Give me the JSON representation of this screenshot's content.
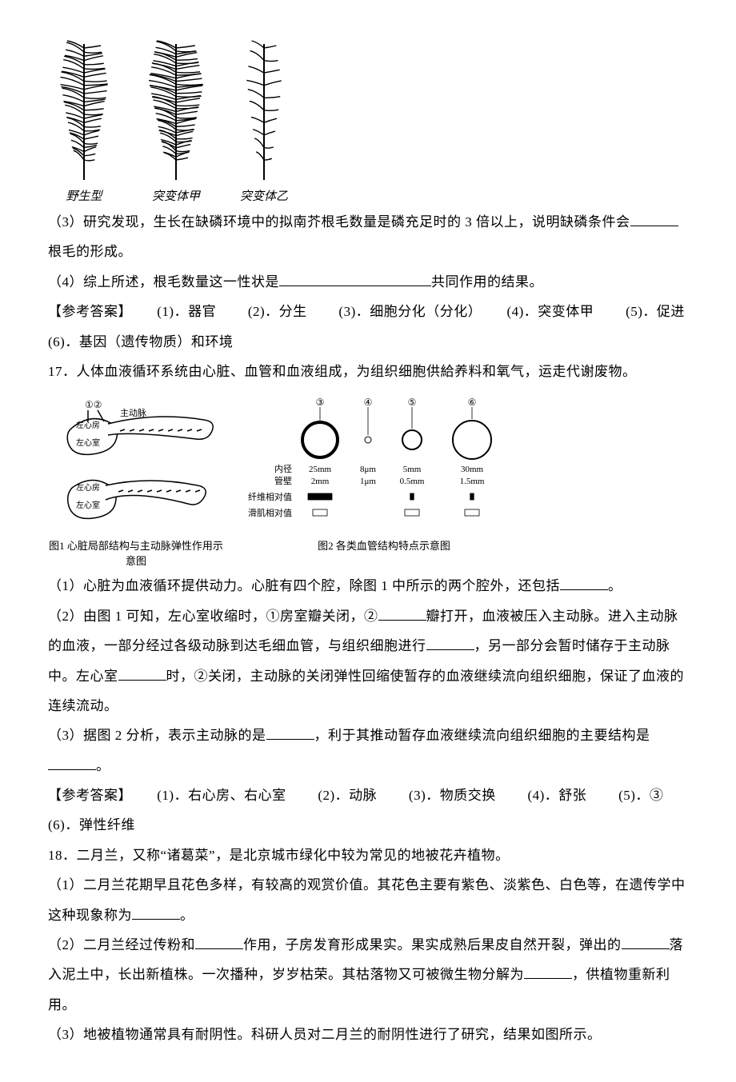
{
  "colors": {
    "text": "#000000",
    "background": "#ffffff",
    "line": "#000000"
  },
  "root_diagram": {
    "items": [
      {
        "label": "野生型",
        "density": 28,
        "length": 170,
        "hair_len": 30
      },
      {
        "label": "突变体甲",
        "density": 38,
        "length": 170,
        "hair_len": 34
      },
      {
        "label": "突变体乙",
        "density": 10,
        "length": 170,
        "hair_len": 22
      }
    ],
    "stroke": "#000000",
    "stroke_width": 1.4,
    "caption_fontsize": 15
  },
  "q16": {
    "p3": "（3）研究发现，生长在缺磷环境中的拟南芥根毛数量是磷充足时的 3 倍以上，说明缺磷条件会",
    "p3b": "根毛的形成。",
    "p4a": "（4）综上所述，根毛数量这一性状是",
    "p4b": "共同作用的结果。",
    "answer_label": "【参考答案】",
    "answers": [
      "(1)．器官",
      "(2)．分生",
      "(3)．细胞分化（分化）",
      "(4)．突变体甲",
      "(5)．促进",
      "(6)．基因（遗传物质）和环境"
    ]
  },
  "q17": {
    "title": "17．人体血液循环系统由心脏、血管和血液组成，为组织细胞供給养料和氧气，运走代谢废物。",
    "heart_fig": {
      "caption": "图1 心脏局部结构与主动脉弹性作用示意图",
      "labels": {
        "la": "左心房",
        "lv": "左心室",
        "aorta": "主动脉",
        "n1": "①",
        "n2": "②"
      },
      "stroke": "#000000"
    },
    "vessel_fig": {
      "caption": "图2 各类血管结构特点示意图",
      "vessels": [
        {
          "id": "③",
          "inner_d": "25mm",
          "wall": "2mm",
          "r": 22,
          "sw": 4
        },
        {
          "id": "④",
          "inner_d": "8μm",
          "wall": "1μm",
          "r": 4,
          "sw": 1
        },
        {
          "id": "⑤",
          "inner_d": "5mm",
          "wall": "0.5mm",
          "r": 12,
          "sw": 2
        },
        {
          "id": "⑥",
          "inner_d": "30mm",
          "wall": "1.5mm",
          "r": 24,
          "sw": 2
        }
      ],
      "row_labels": [
        "内径",
        "管壁",
        "弹性纤维相对值",
        "平滑肌相对值"
      ],
      "bars_elastic": [
        1.0,
        0.0,
        0.15,
        0.15
      ],
      "bars_smooth": [
        0.6,
        0.0,
        0.6,
        0.6
      ],
      "stroke": "#000000"
    },
    "p1": "（1）心脏为血液循环提供动力。心脏有四个腔，除图 1 中所示的两个腔外，还包括",
    "p1b": "。",
    "p2a": "（2）由图 1 可知，左心室收缩时，①房室瓣关闭，②",
    "p2b": "瓣打开，血液被压入主动脉。进入主动脉的血液，一部分经过各级动脉到达毛细血管，与组织细胞进行",
    "p2c": "，另一部分会暂时储存于主动脉中。左心室",
    "p2d": "时，②关闭，主动脉的关闭弹性回缩使暂存的血液继续流向组织细胞，保证了血液的连续流动。",
    "p3a": "（3）据图 2 分析，表示主动脉的是",
    "p3b": "，利于其推动暂存血液继续流向组织细胞的主要结构是",
    "p3c": "。",
    "answer_label": "【参考答案】",
    "answers": [
      "(1)．右心房、右心室",
      "(2)．动脉",
      "(3)．物质交换",
      "(4)．舒张",
      "(5)．③",
      "(6)．弹性纤维"
    ]
  },
  "q18": {
    "title": "18．二月兰，又称“诸葛菜”，是北京城市绿化中较为常见的地被花卉植物。",
    "p1a": "（1）二月兰花期早且花色多样，有较高的观赏价值。其花色主要有紫色、淡紫色、白色等，在遗传学中这种现象称为",
    "p1b": "。",
    "p2a": "（2）二月兰经过传粉和",
    "p2b": "作用，子房发育形成果实。果实成熟后果皮自然开裂，弹出的",
    "p2c": "落入泥土中，长出新植株。一次播种，岁岁枯荣。其枯落物又可被微生物分解为",
    "p2d": "，供植物重新利用。",
    "p3": "（3）地被植物通常具有耐阴性。科研人员对二月兰的耐阴性进行了研究，结果如图所示。"
  },
  "blanks": {
    "short": 60,
    "med": 90,
    "long": 190
  }
}
